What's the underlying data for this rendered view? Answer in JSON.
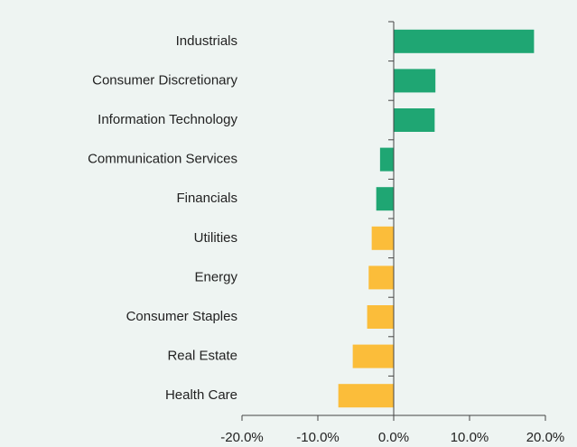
{
  "chart_data": {
    "type": "bar",
    "orientation": "horizontal",
    "categories": [
      "Industrials",
      "Consumer Discretionary",
      "Information Technology",
      "Communication Services",
      "Financials",
      "Utilities",
      "Energy",
      "Consumer Staples",
      "Real Estate",
      "Health Care"
    ],
    "values": [
      18.5,
      5.5,
      5.4,
      -1.8,
      -2.3,
      -2.9,
      -3.3,
      -3.5,
      -5.4,
      -7.3
    ],
    "colors": [
      "#1fa673",
      "#1fa673",
      "#1fa673",
      "#1fa673",
      "#1fa673",
      "#fbbd3a",
      "#fbbd3a",
      "#fbbd3a",
      "#fbbd3a",
      "#fbbd3a"
    ],
    "xlim": [
      -20,
      20
    ],
    "xticks": [
      {
        "value": -20,
        "label": "-20.0%"
      },
      {
        "value": -10,
        "label": "-10.0%"
      },
      {
        "value": 0,
        "label": "0.0%"
      },
      {
        "value": 10,
        "label": "10.0%"
      },
      {
        "value": 20,
        "label": "20.0%"
      }
    ],
    "grid": false
  }
}
